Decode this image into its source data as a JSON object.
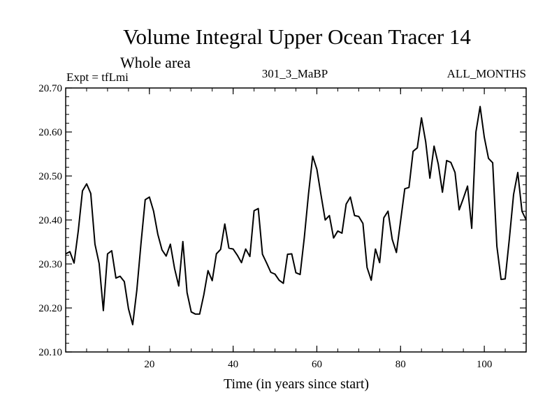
{
  "chart_data": {
    "type": "line",
    "title": "Volume Integral Upper Ocean Tracer 14",
    "subtitle": "Whole area",
    "left_label": "Expt = tfLmi",
    "center_label": "301_3_MaBP",
    "right_label": "ALL_MONTHS",
    "xlabel": "Time (in years since start)",
    "ylabel": "",
    "xlim": [
      0,
      110
    ],
    "ylim": [
      20.1,
      20.7
    ],
    "x_ticks": [
      20,
      40,
      60,
      80,
      100
    ],
    "y_ticks": [
      "20.10",
      "20.20",
      "20.30",
      "20.40",
      "20.50",
      "20.60",
      "20.70"
    ],
    "series": [
      {
        "name": "tracer14",
        "x": [
          0,
          1,
          2,
          3,
          4,
          5,
          6,
          7,
          8,
          9,
          10,
          11,
          12,
          13,
          14,
          15,
          16,
          17,
          18,
          19,
          20,
          21,
          22,
          23,
          24,
          25,
          26,
          27,
          28,
          29,
          30,
          31,
          32,
          33,
          34,
          35,
          36,
          37,
          38,
          39,
          40,
          41,
          42,
          43,
          44,
          45,
          46,
          47,
          48,
          49,
          50,
          51,
          52,
          53,
          54,
          55,
          56,
          57,
          58,
          59,
          60,
          61,
          62,
          63,
          64,
          65,
          66,
          67,
          68,
          69,
          70,
          71,
          72,
          73,
          74,
          75,
          76,
          77,
          78,
          79,
          80,
          81,
          82,
          83,
          84,
          85,
          86,
          87,
          88,
          89,
          90,
          91,
          92,
          93,
          94,
          95,
          96,
          97,
          98,
          99,
          100,
          101,
          102,
          103,
          104,
          105,
          106,
          107,
          108,
          109,
          110
        ],
        "values": [
          20.323,
          20.328,
          20.302,
          20.375,
          20.466,
          20.482,
          20.46,
          20.345,
          20.301,
          20.194,
          20.323,
          20.33,
          20.268,
          20.272,
          20.26,
          20.198,
          20.162,
          20.24,
          20.347,
          20.446,
          20.452,
          20.42,
          20.368,
          20.332,
          20.318,
          20.345,
          20.29,
          20.25,
          20.351,
          20.235,
          20.191,
          20.186,
          20.186,
          20.23,
          20.285,
          20.262,
          20.323,
          20.333,
          20.391,
          20.336,
          20.334,
          20.32,
          20.303,
          20.334,
          20.317,
          20.421,
          20.426,
          20.322,
          20.302,
          20.281,
          20.277,
          20.263,
          20.256,
          20.322,
          20.323,
          20.28,
          20.276,
          20.36,
          20.459,
          20.545,
          20.515,
          20.457,
          20.4,
          20.41,
          20.359,
          20.375,
          20.37,
          20.436,
          20.452,
          20.41,
          20.408,
          20.392,
          20.292,
          20.263,
          20.334,
          20.303,
          20.405,
          20.42,
          20.356,
          20.326,
          20.398,
          20.471,
          20.474,
          20.556,
          20.564,
          20.632,
          20.578,
          20.495,
          20.568,
          20.527,
          20.463,
          20.535,
          20.531,
          20.508,
          20.423,
          20.449,
          20.477,
          20.381,
          20.6,
          20.658,
          20.588,
          20.54,
          20.53,
          20.34,
          20.265,
          20.266,
          20.358,
          20.458,
          20.508,
          20.42,
          20.4
        ]
      }
    ],
    "color": "#000000"
  }
}
